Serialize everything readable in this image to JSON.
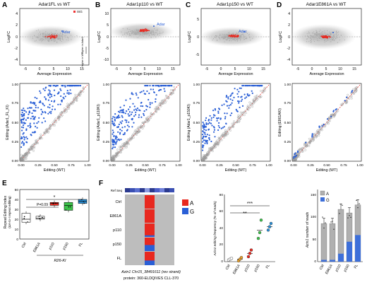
{
  "panels": {
    "A": {
      "letter": "A",
      "title": "Adar1FL vs WT"
    },
    "B": {
      "letter": "B",
      "title": "Adar1p110 vs WT"
    },
    "C": {
      "letter": "C",
      "title": "Adar1p150 vs WT"
    },
    "D": {
      "letter": "D",
      "title": "Adar1E861A vs WT"
    },
    "E": {
      "letter": "E"
    },
    "F": {
      "letter": "F"
    }
  },
  "ma_plots": {
    "ylabel": "LogFC",
    "xlabel": "Average Expression",
    "x_ticks": [
      "-5",
      "0",
      "5",
      "10",
      "15"
    ],
    "highlight_gene": "Adar",
    "legend_label": "ISG",
    "direction_up": "higher in Adar1",
    "direction_down": "higher in WT",
    "A_y_ticks": [
      "4",
      "2",
      "0",
      "-2",
      "-4"
    ],
    "B_y_ticks": [
      "10",
      "5",
      "0",
      "-5",
      "-10"
    ],
    "C_y_ticks": [
      "5",
      "0",
      "-5"
    ],
    "D_y_ticks": [
      "4",
      "2",
      "0",
      "-2",
      "-4"
    ]
  },
  "scatter_plots": {
    "xlabel": "Editing (WT)",
    "ticks": [
      "0.00",
      "0.25",
      "0.50",
      "0.75",
      "1.00"
    ],
    "ylabels": [
      "Editing (Adar1_FL_KI)",
      "Editing (Adar1_p110KI)",
      "Editing (Adar1_p150KI)",
      "Editing (E861AKI)"
    ]
  },
  "panel_E": {
    "ylabel_1": "Repeat Editing Index",
    "ylabel_2": "(ΔA-to-I repeat editing)",
    "y_ticks": [
      "50",
      "40",
      "30",
      "20",
      "10",
      "0"
    ],
    "categories": [
      "Ctrl",
      "E861A",
      "p110",
      "p150",
      "FL"
    ],
    "xgroup_label": "R26-KI",
    "pval_label": "P=0.09",
    "sig_label": "*",
    "chart_data": {
      "type": "box",
      "categories": [
        "Ctrl",
        "E861A",
        "p110",
        "p150",
        "FL"
      ],
      "median": [
        20,
        21,
        36,
        34,
        38
      ],
      "q1": [
        17,
        20,
        34,
        29,
        36
      ],
      "q3": [
        26,
        23,
        37,
        37,
        40
      ],
      "ylim": [
        0,
        50
      ]
    }
  },
  "panel_F_heatmap": {
    "ref_label": "Ref Seq",
    "rows": [
      "Ctrl",
      "E861A",
      "p110",
      "p150",
      "FL"
    ],
    "legend_a": "A",
    "legend_g": "G",
    "caption_1": "Azin1 Chr15_38491611 (rev strand)",
    "caption_2": "protein: 360-ELDQIVES CLL-370"
  },
  "panel_F_dots": {
    "ylabel_1": "Azin1 editing frequency (% of reads)",
    "y_ticks": [
      "80",
      "60",
      "40",
      "20",
      "0"
    ],
    "categories": [
      "Ctrl",
      "E861A",
      "p110",
      "p150",
      "FL"
    ],
    "sig_1": "***",
    "sig_2": "**",
    "chart_data": {
      "type": "scatter",
      "categories": [
        "Ctrl",
        "E861A",
        "p110",
        "p150",
        "FL"
      ],
      "means": [
        3,
        3,
        10,
        38,
        42
      ],
      "points": [
        [
          2,
          3,
          4
        ],
        [
          1,
          3,
          5
        ],
        [
          6,
          10,
          14
        ],
        [
          28,
          35,
          50
        ],
        [
          38,
          42,
          46
        ]
      ],
      "ylim": [
        0,
        80
      ]
    }
  },
  "panel_F_bars": {
    "ylabel": "Azin1 number of reads",
    "y_ticks": [
      "150",
      "100",
      "50",
      "0"
    ],
    "categories": [
      "Ctrl",
      "E861A",
      "p110",
      "p150",
      "FL"
    ],
    "legend_a": "A",
    "legend_g": "G",
    "chart_data": {
      "type": "bar",
      "stacked": true,
      "categories": [
        "Ctrl",
        "E861A",
        "p110",
        "p150",
        "FL"
      ],
      "series": [
        {
          "name": "A",
          "values": [
            82,
            82,
            100,
            65,
            68
          ]
        },
        {
          "name": "G",
          "values": [
            4,
            4,
            18,
            45,
            60
          ]
        }
      ],
      "ylim": [
        0,
        150
      ]
    }
  }
}
